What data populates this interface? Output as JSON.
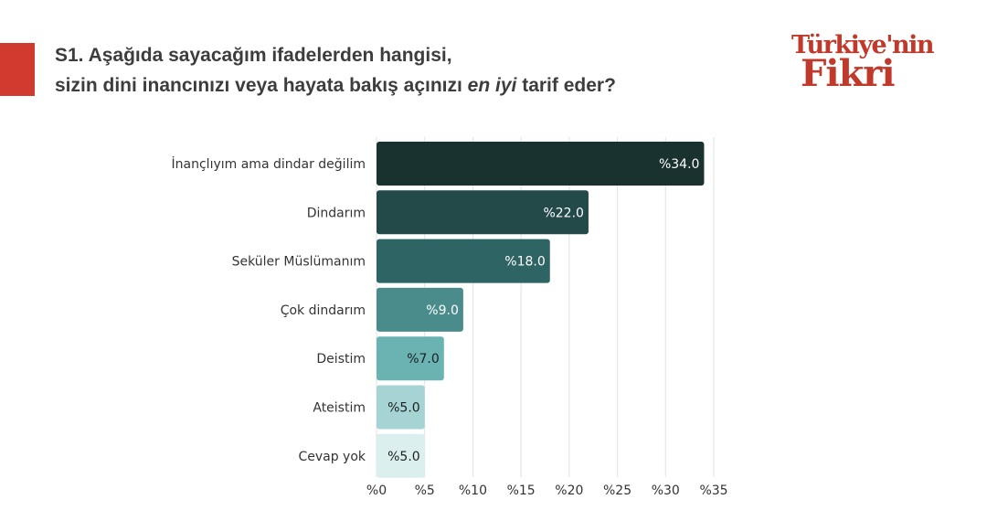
{
  "header": {
    "title_line1": "S1. Aşağıda sayacağım ifadelerden hangisi,",
    "title_line2_pre": "sizin dini inancınızı veya hayata bakış açınızı ",
    "title_line2_em": "en iyi",
    "title_line2_post": " tarif eder?",
    "accent_color": "#d13a2e"
  },
  "logo": {
    "line1": "Türkiye'nin",
    "line2": "Fikri",
    "color": "#c0392b"
  },
  "chart_data": {
    "type": "bar",
    "orientation": "horizontal",
    "categories": [
      "İnançlıyım ama dindar değilim",
      "Dindarım",
      "Seküler Müslümanım",
      "Çok dindarım",
      "Deistim",
      "Ateistim",
      "Cevap yok"
    ],
    "values": [
      34.0,
      22.0,
      18.0,
      9.0,
      7.0,
      5.0,
      5.0
    ],
    "value_labels": [
      "%34.0",
      "%22.0",
      "%18.0",
      "%9.0",
      "%7.0",
      "%5.0",
      "%5.0"
    ],
    "colors": [
      "#19312f",
      "#234a49",
      "#2f6464",
      "#4a8c8b",
      "#6bb3b3",
      "#a6d4d4",
      "#dcefef"
    ],
    "label_colors": [
      "#ffffff",
      "#ffffff",
      "#ffffff",
      "#ffffff",
      "#1f1f1f",
      "#1f1f1f",
      "#1f1f1f"
    ],
    "xlim": [
      0,
      35
    ],
    "xticks": [
      0,
      5,
      10,
      15,
      20,
      25,
      30,
      35
    ],
    "xtick_labels": [
      "%0",
      "%5",
      "%10",
      "%15",
      "%20",
      "%25",
      "%30",
      "%35"
    ],
    "grid": true,
    "gridline_color": "#e2e2e2",
    "title": "",
    "xlabel": "",
    "ylabel": ""
  }
}
